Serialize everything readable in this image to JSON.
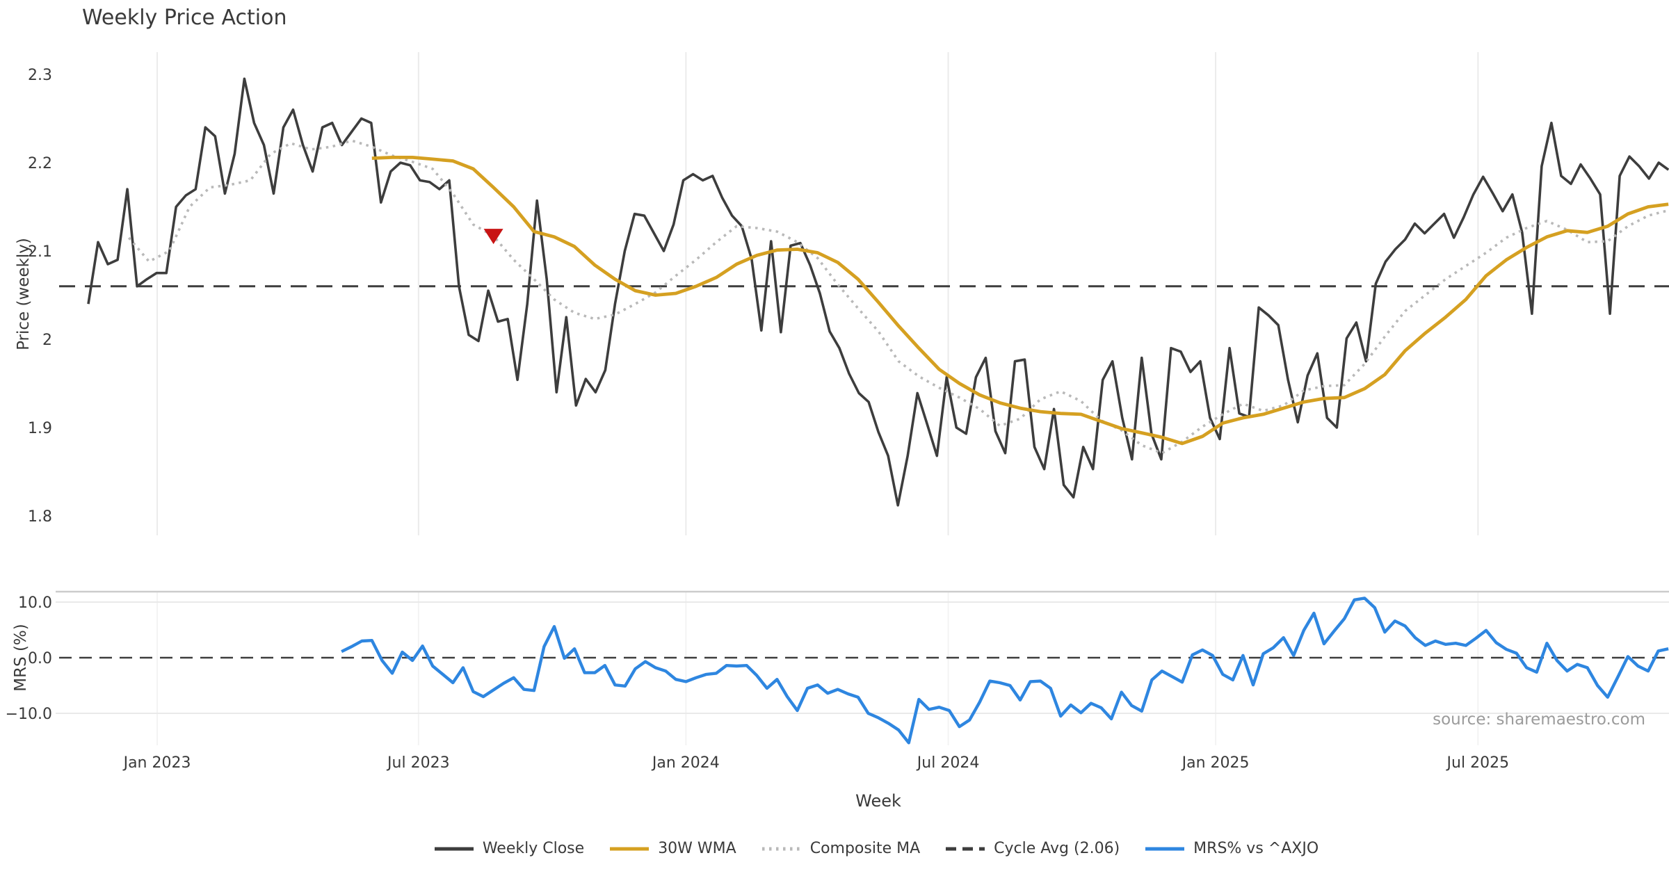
{
  "title": "Weekly Price Action",
  "source_note": "source: sharemaestro.com",
  "chart_data": {
    "type": "line",
    "x_unit": "weeks (weekly bars, late-2022 through late-2025)",
    "xlabel": "Week",
    "grid": "vertical-gridlines-top-panel, horizontal-gridlines-bottom-panel",
    "legend_position": "bottom-center",
    "xticks": [
      {
        "t": 6.8,
        "label": "Jan 2023"
      },
      {
        "t": 32.6,
        "label": "Jul 2023"
      },
      {
        "t": 59.0,
        "label": "Jan 2024"
      },
      {
        "t": 84.9,
        "label": "Jul 2024"
      },
      {
        "t": 111.3,
        "label": "Jan 2025"
      },
      {
        "t": 137.2,
        "label": "Jul 2025"
      }
    ],
    "panels": [
      {
        "id": "price",
        "ylabel": "Price (weekly)",
        "ylim": [
          1.778,
          2.325
        ],
        "yticks": [
          {
            "v": 2.3,
            "label": "2.3"
          },
          {
            "v": 2.2,
            "label": "2.2"
          },
          {
            "v": 2.1,
            "label": "2.1"
          },
          {
            "v": 2.0,
            "label": "2"
          },
          {
            "v": 1.9,
            "label": "1.9"
          },
          {
            "v": 1.8,
            "label": "1.8"
          }
        ],
        "ref_line": {
          "label": "Cycle Avg (2.06)",
          "value": 2.06,
          "color": "#3d3d3d",
          "style": "dashed"
        },
        "marker": {
          "type": "triangle-down",
          "t": 40,
          "value": 2.118,
          "color": "#c81414"
        }
      },
      {
        "id": "mrs",
        "ylabel": "MRS (%)",
        "ylim": [
          -15.8,
          11.9
        ],
        "yticks": [
          {
            "v": 10,
            "label": "10.0"
          },
          {
            "v": 0,
            "label": "0.0"
          },
          {
            "v": -10,
            "label": "−10.0"
          }
        ],
        "ref_line": {
          "label": "zero",
          "value": 0,
          "color": "#3d3d3d",
          "style": "dashed"
        }
      }
    ],
    "series": [
      {
        "name": "Weekly Close",
        "panel": "price",
        "color": "#3d3d3d",
        "style": "solid",
        "width": 3.6,
        "start": 0,
        "step": 0.963,
        "values": [
          2.04,
          2.11,
          2.085,
          2.09,
          2.17,
          2.06,
          2.068,
          2.075,
          2.075,
          2.15,
          2.163,
          2.17,
          2.24,
          2.23,
          2.165,
          2.21,
          2.295,
          2.245,
          2.22,
          2.165,
          2.24,
          2.26,
          2.22,
          2.19,
          2.24,
          2.245,
          2.22,
          2.235,
          2.25,
          2.245,
          2.155,
          2.19,
          2.2,
          2.197,
          2.18,
          2.178,
          2.17,
          2.18,
          2.06,
          2.005,
          1.998,
          2.055,
          2.02,
          2.023,
          1.954,
          2.04,
          2.157,
          2.068,
          1.94,
          2.025,
          1.925,
          1.955,
          1.94,
          1.965,
          2.04,
          2.1,
          2.142,
          2.14,
          2.12,
          2.1,
          2.13,
          2.18,
          2.187,
          2.18,
          2.185,
          2.16,
          2.14,
          2.128,
          2.091,
          2.01,
          2.111,
          2.008,
          2.106,
          2.109,
          2.084,
          2.052,
          2.009,
          1.99,
          1.961,
          1.939,
          1.929,
          1.895,
          1.868,
          1.812,
          1.868,
          1.939,
          1.904,
          1.868,
          1.957,
          1.9,
          1.893,
          1.957,
          1.979,
          1.896,
          1.871,
          1.975,
          1.977,
          1.878,
          1.853,
          1.921,
          1.835,
          1.821,
          1.878,
          1.853,
          1.954,
          1.975,
          1.911,
          1.864,
          1.979,
          1.893,
          1.864,
          1.99,
          1.986,
          1.963,
          1.975,
          1.911,
          1.887,
          1.99,
          1.916,
          1.912,
          2.036,
          2.027,
          2.016,
          1.954,
          1.906,
          1.959,
          1.984,
          1.911,
          1.9,
          2.001,
          2.019,
          1.975,
          2.063,
          2.088,
          2.102,
          2.113,
          2.131,
          2.12,
          2.131,
          2.142,
          2.115,
          2.138,
          2.164,
          2.184,
          2.165,
          2.145,
          2.164,
          2.121,
          2.029,
          2.196,
          2.245,
          2.185,
          2.176,
          2.198,
          2.182,
          2.164,
          2.029,
          2.185,
          2.207,
          2.196,
          2.182,
          2.2,
          2.192
        ]
      },
      {
        "name": "30W WMA",
        "panel": "price",
        "color": "#d5a021",
        "style": "solid",
        "width": 4.8,
        "start": 28,
        "step": 2,
        "values": [
          2.205,
          2.206,
          2.206,
          2.204,
          2.202,
          2.193,
          2.172,
          2.15,
          2.122,
          2.116,
          2.105,
          2.084,
          2.068,
          2.055,
          2.05,
          2.052,
          2.06,
          2.07,
          2.085,
          2.095,
          2.101,
          2.102,
          2.098,
          2.087,
          2.068,
          2.042,
          2.015,
          1.99,
          1.966,
          1.95,
          1.937,
          1.928,
          1.922,
          1.918,
          1.916,
          1.915,
          1.907,
          1.899,
          1.894,
          1.889,
          1.882,
          1.89,
          1.905,
          1.911,
          1.915,
          1.922,
          1.929,
          1.933,
          1.934,
          1.944,
          1.96,
          1.987,
          2.007,
          2.025,
          2.045,
          2.072,
          2.09,
          2.104,
          2.116,
          2.123,
          2.121,
          2.128,
          2.142,
          2.15,
          2.153
        ]
      },
      {
        "name": "Composite MA",
        "panel": "price",
        "color": "#b9b9b9",
        "style": "dotted",
        "width": 3.6,
        "start": 4,
        "step": 2,
        "values": [
          2.115,
          2.088,
          2.1,
          2.15,
          2.172,
          2.175,
          2.18,
          2.21,
          2.222,
          2.215,
          2.218,
          2.225,
          2.218,
          2.208,
          2.201,
          2.193,
          2.165,
          2.13,
          2.117,
          2.09,
          2.068,
          2.045,
          2.03,
          2.023,
          2.028,
          2.04,
          2.053,
          2.072,
          2.09,
          2.11,
          2.128,
          2.126,
          2.122,
          2.11,
          2.092,
          2.062,
          2.035,
          2.009,
          1.975,
          1.958,
          1.945,
          1.934,
          1.921,
          1.902,
          1.91,
          1.932,
          1.941,
          1.93,
          1.908,
          1.897,
          1.88,
          1.871,
          1.884,
          1.901,
          1.915,
          1.927,
          1.919,
          1.925,
          1.942,
          1.947,
          1.948,
          1.972,
          2.003,
          2.032,
          2.05,
          2.068,
          2.083,
          2.098,
          2.115,
          2.126,
          2.134,
          2.124,
          2.11,
          2.111,
          2.128,
          2.14,
          2.146
        ]
      },
      {
        "name": "MRS% vs ^AXJO",
        "panel": "mrs",
        "color": "#2e86e0",
        "style": "solid",
        "width": 4.4,
        "start": 25,
        "step": 1,
        "values": [
          1.1,
          2.0,
          3.0,
          3.1,
          -0.5,
          -2.8,
          1.0,
          -0.5,
          2.1,
          -1.5,
          -3.0,
          -4.5,
          -1.8,
          -6.1,
          -7.0,
          -5.8,
          -4.6,
          -3.6,
          -5.7,
          -5.9,
          2.0,
          5.6,
          -0.1,
          1.6,
          -2.7,
          -2.7,
          -1.4,
          -4.9,
          -5.1,
          -2.0,
          -0.7,
          -1.8,
          -2.4,
          -3.9,
          -4.3,
          -3.6,
          -3.0,
          -2.8,
          -1.4,
          -1.5,
          -1.4,
          -3.2,
          -5.5,
          -3.9,
          -7.0,
          -9.5,
          -5.5,
          -4.9,
          -6.4,
          -5.7,
          -6.5,
          -7.1,
          -10.0,
          -10.8,
          -11.8,
          -13.0,
          -15.3,
          -7.5,
          -9.3,
          -8.9,
          -9.5,
          -12.4,
          -11.2,
          -8.0,
          -4.2,
          -4.5,
          -5.0,
          -7.6,
          -4.3,
          -4.2,
          -5.5,
          -10.5,
          -8.5,
          -9.9,
          -8.2,
          -9.0,
          -11.0,
          -6.2,
          -8.6,
          -9.6,
          -4.0,
          -2.4,
          -3.4,
          -4.4,
          0.5,
          1.4,
          0.4,
          -3.0,
          -4.0,
          0.4,
          -4.9,
          0.7,
          1.8,
          3.6,
          0.4,
          4.9,
          8.0,
          2.5,
          4.8,
          7.0,
          10.4,
          10.7,
          9.0,
          4.6,
          6.6,
          5.7,
          3.6,
          2.2,
          3.0,
          2.4,
          2.6,
          2.2,
          3.5,
          4.9,
          2.7,
          1.5,
          0.8,
          -1.8,
          -2.6,
          2.6,
          -0.5,
          -2.4,
          -1.2,
          -1.8,
          -5.0,
          -7.1,
          -3.5,
          0.2,
          -1.5,
          -2.4,
          1.2,
          1.6
        ]
      }
    ],
    "legend": [
      {
        "label": "Weekly Close",
        "color": "#3d3d3d",
        "style": "solid"
      },
      {
        "label": "30W WMA",
        "color": "#d5a021",
        "style": "solid"
      },
      {
        "label": "Composite MA",
        "color": "#b9b9b9",
        "style": "dotted"
      },
      {
        "label": "Cycle Avg (2.06)",
        "color": "#3d3d3d",
        "style": "dashed"
      },
      {
        "label": "MRS% vs ^AXJO",
        "color": "#2e86e0",
        "style": "solid"
      }
    ]
  }
}
